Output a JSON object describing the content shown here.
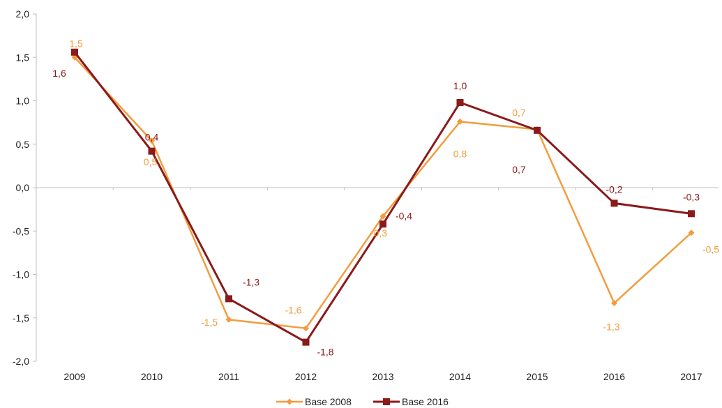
{
  "chart_data": {
    "type": "line",
    "categories": [
      "2009",
      "2010",
      "2011",
      "2012",
      "2013",
      "2014",
      "2015",
      "2016",
      "2017"
    ],
    "ylim": [
      -2.0,
      2.0
    ],
    "yticks": [
      2.0,
      1.5,
      1.0,
      0.5,
      0.0,
      -0.5,
      -1.0,
      -1.5,
      -2.0
    ],
    "ytick_labels": [
      "2,0",
      "1,5",
      "1,0",
      "0,5",
      "0,0",
      "-0,5",
      "-1,0",
      "-1,5",
      "-2,0"
    ],
    "grid": false,
    "legend_position": "bottom",
    "series": [
      {
        "name": "Base 2008",
        "color": "#f39c3c",
        "marker": "diamond",
        "values": [
          1.5,
          0.54,
          -1.52,
          -1.62,
          -0.33,
          0.76,
          0.67,
          -1.33,
          -0.52
        ],
        "labels": [
          "1,5",
          "0,5",
          "-1,5",
          "-1,6",
          "-0,3",
          "0,8",
          "0,7",
          "-1,3",
          "-0,5"
        ]
      },
      {
        "name": "Base 2016",
        "color": "#8b1a1a",
        "marker": "square",
        "values": [
          1.56,
          0.42,
          -1.28,
          -1.78,
          -0.42,
          0.98,
          0.66,
          -0.18,
          -0.3
        ],
        "labels": [
          "1,6",
          "0,4",
          "-1,3",
          "-1,8",
          "-0,4",
          "1,0",
          "0,7",
          "-0,2",
          "-0,3"
        ]
      }
    ]
  }
}
